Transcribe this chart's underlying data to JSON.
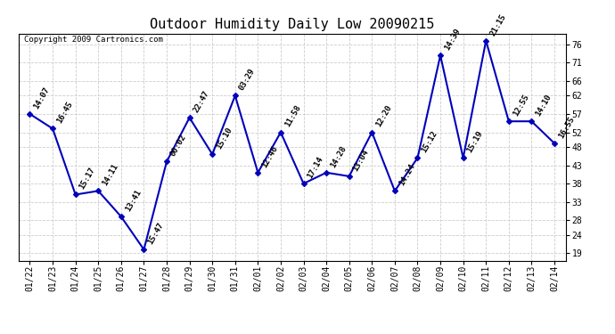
{
  "title": "Outdoor Humidity Daily Low 20090215",
  "copyright": "Copyright 2009 Cartronics.com",
  "x_labels": [
    "01/22",
    "01/23",
    "01/24",
    "01/25",
    "01/26",
    "01/27",
    "01/28",
    "01/29",
    "01/30",
    "01/31",
    "02/01",
    "02/02",
    "02/03",
    "02/04",
    "02/05",
    "02/06",
    "02/07",
    "02/08",
    "02/09",
    "02/10",
    "02/11",
    "02/12",
    "02/13",
    "02/14"
  ],
  "y_values": [
    57,
    53,
    35,
    36,
    29,
    20,
    44,
    56,
    46,
    62,
    41,
    52,
    38,
    41,
    40,
    52,
    36,
    45,
    73,
    45,
    77,
    55,
    55,
    49
  ],
  "point_labels": [
    "14:07",
    "16:45",
    "15:17",
    "14:11",
    "13:41",
    "15:47",
    "00:02",
    "22:47",
    "15:10",
    "03:29",
    "12:46",
    "11:58",
    "17:14",
    "14:28",
    "13:04",
    "12:20",
    "14:24",
    "15:12",
    "14:39",
    "15:19",
    "21:15",
    "12:55",
    "14:10",
    "16:55"
  ],
  "y_ticks": [
    19,
    24,
    28,
    33,
    38,
    43,
    48,
    52,
    57,
    62,
    66,
    71,
    76
  ],
  "ylim": [
    17,
    79
  ],
  "line_color": "#0000bb",
  "marker_color": "#0000bb",
  "bg_color": "#ffffff",
  "grid_color": "#cccccc",
  "title_fontsize": 11,
  "label_fontsize": 7,
  "point_label_fontsize": 6.5,
  "copyright_fontsize": 6.5
}
